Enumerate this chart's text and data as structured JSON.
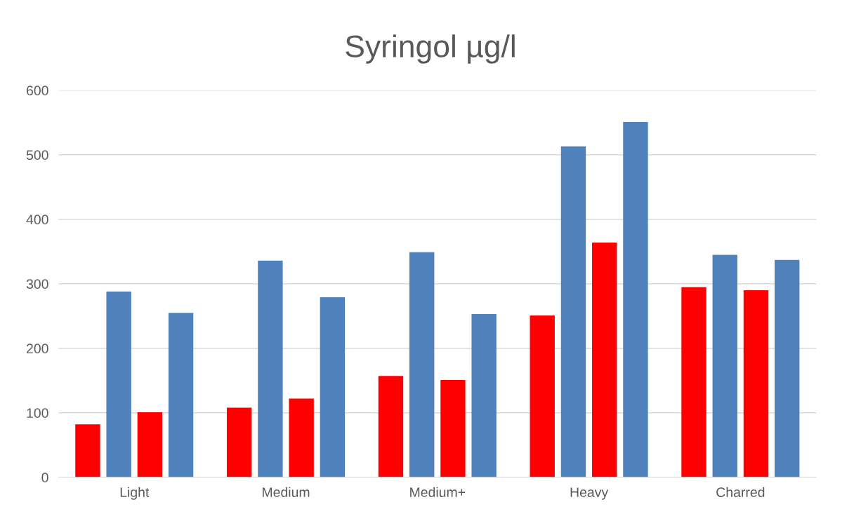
{
  "chart_data": {
    "type": "bar",
    "title": "Syringol µg/l",
    "categories": [
      "Light",
      "Medium",
      "Medium+",
      "Heavy",
      "Charred"
    ],
    "series": [
      {
        "color": "#ff0000",
        "values": [
          82,
          108,
          157,
          251,
          295
        ]
      },
      {
        "color": "#4f81bd",
        "values": [
          288,
          336,
          349,
          513,
          345
        ]
      },
      {
        "color": "#ff0000",
        "values": [
          101,
          122,
          151,
          364,
          290
        ]
      },
      {
        "color": "#4f81bd",
        "values": [
          255,
          279,
          253,
          551,
          337
        ]
      }
    ],
    "ylim": [
      0,
      600
    ],
    "yticks": [
      0,
      100,
      200,
      300,
      400,
      500,
      600
    ],
    "grid": "y",
    "legend": false
  }
}
